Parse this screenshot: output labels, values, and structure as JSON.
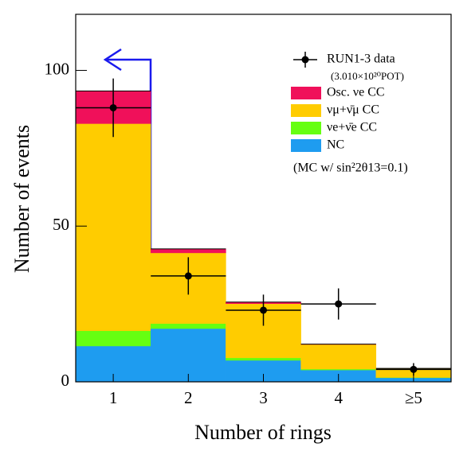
{
  "chart_data": {
    "type": "stacked-histogram",
    "x_label": "Number of rings",
    "y_label": "Number of events",
    "categories": [
      "1",
      "2",
      "3",
      "4",
      "≥5"
    ],
    "series": [
      {
        "name": "NC",
        "color": "#1e9cf0",
        "values": [
          11.5,
          17.1,
          6.9,
          3.8,
          1.3
        ]
      },
      {
        "name": "νe+ν̄e CC",
        "color": "#66ff11",
        "values": [
          4.9,
          1.6,
          0.8,
          0.3,
          0.1
        ]
      },
      {
        "name": "νμ+ν̄μ CC",
        "color": "#ffcc00",
        "values": [
          66.5,
          22.7,
          17.4,
          7.9,
          2.9
        ]
      },
      {
        "name": "Osc. νe CC",
        "color": "#f0105a",
        "values": [
          10.5,
          1.3,
          0.5,
          0.1,
          0
        ]
      }
    ],
    "data": {
      "name": "RUN1-3 data",
      "note": "(3.010×10²⁰POT)",
      "values": [
        88,
        34,
        23,
        25,
        4
      ],
      "errors": [
        9.4,
        6,
        5,
        5,
        2
      ]
    },
    "mc_note": "(MC w/ sin²2θ13=0.1)",
    "ylim": [
      0,
      118
    ],
    "yticks": [
      0,
      50,
      100
    ]
  }
}
